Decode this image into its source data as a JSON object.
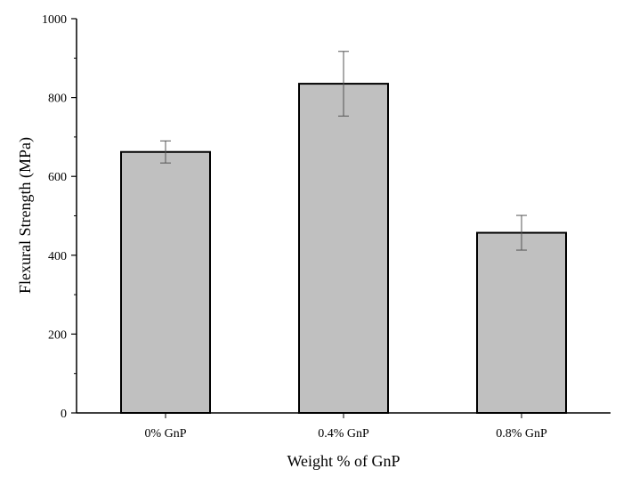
{
  "chart_data": {
    "type": "bar",
    "title": "",
    "xlabel": "Weight % of GnP",
    "ylabel": "Flexural Strength (MPa)",
    "categories": [
      "0% GnP",
      "0.4% GnP",
      "0.8% GnP"
    ],
    "values": [
      662,
      835,
      457
    ],
    "errors": [
      28,
      82,
      44
    ],
    "ylim": [
      0,
      1000
    ],
    "yticks": [
      0,
      200,
      400,
      600,
      800,
      1000
    ],
    "ytick_labels": [
      "0",
      "200",
      "400",
      "600",
      "800",
      "1000"
    ],
    "grid": false,
    "colors": {
      "bar_fill": "#c0c0c0",
      "bar_stroke": "#000000",
      "error_bar": "#555555",
      "axis": "#000000"
    }
  }
}
